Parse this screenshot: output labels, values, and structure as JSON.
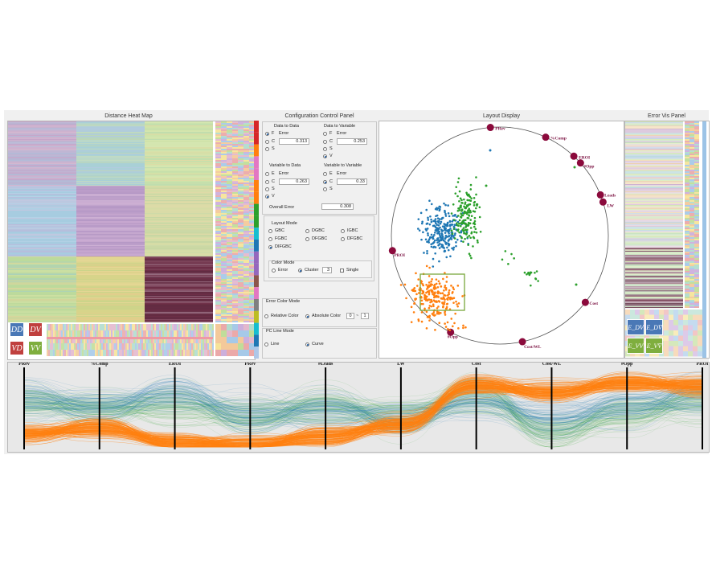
{
  "panels": {
    "heatmap_title": "Distance  Heat Map",
    "control_title": "Configuration Control Panel",
    "layout_title": "Layout Display",
    "error_title": "Error Vis Panel"
  },
  "heatmap": {
    "legend": [
      "DD",
      "DV",
      "VD",
      "VV"
    ],
    "legend_colors": [
      "#4a78b6",
      "#c0403e",
      "#c0403e",
      "#7fae3e"
    ]
  },
  "control": {
    "data_to_data": {
      "title": "Data to Data",
      "options": [
        "F",
        "C",
        "S"
      ],
      "selected": "F",
      "error_label": "Error",
      "value": "0.313"
    },
    "data_to_variable": {
      "title": "Data to Variable",
      "options": [
        "F",
        "C",
        "S",
        "V"
      ],
      "selected": "V",
      "error_label": "Error",
      "value": "0.253"
    },
    "variable_to_data": {
      "title": "Variable to Data",
      "options": [
        "E",
        "C",
        "S",
        "V"
      ],
      "selected": "V",
      "error_label": "Error",
      "value": "0.263"
    },
    "variable_to_variable": {
      "title": "Variable to Variable",
      "options": [
        "E",
        "C",
        "S"
      ],
      "selected": "C",
      "error_label": "Error",
      "value": "0.33"
    },
    "overall_error_label": "Overall Error",
    "overall_error_value": "0.308",
    "layout_mode": {
      "title": "Layout Mode",
      "options": [
        "GBC",
        "DGBC",
        "IGBC",
        "FGBC",
        "DFGBC",
        "DFGBC",
        "DIFGBC"
      ],
      "selected": "DIFGBC"
    },
    "color_mode": {
      "title": "Color Mode",
      "options": [
        "Error",
        "Cluster"
      ],
      "selected": "Cluster",
      "cluster_count": "3",
      "single_label": "Single"
    },
    "error_color_mode": {
      "title": "Error Color Mode",
      "options": [
        "Relative Color",
        "Absolute Color"
      ],
      "selected": "Absolute Color",
      "range_min": "0",
      "range_sep": "~",
      "range_max": "1"
    },
    "pc_line_mode": {
      "title": "PC Line Mode",
      "options": [
        "Line",
        "Curve"
      ],
      "selected": "Curve"
    }
  },
  "layout_display": {
    "anchors": [
      "PRev",
      "%Comp",
      "EROI",
      "#Opp",
      "Leads",
      "LW",
      "Cost",
      "Cost/WL",
      "#Opp",
      "PROI"
    ],
    "cluster_colors": [
      "#1f77b4",
      "#2ca02c",
      "#ff7f0e"
    ],
    "anchor_color": "#8b0a3c",
    "selection_color": "#7aa83c"
  },
  "error_vis": {
    "legend": [
      "E_DV",
      "E_DV̄",
      "E_VV",
      "E_VV̄"
    ],
    "legend_labels": [
      "EDV",
      "EDV",
      "EVV",
      "EVV"
    ],
    "legend_colors": [
      "#4a78b6",
      "#4a78b6",
      "#7fae3e",
      "#7fae3e"
    ]
  },
  "parallel_coords": {
    "axes": [
      "PRev",
      "%Comp",
      "EROI",
      "PRev",
      "#Leads",
      "LW",
      "Cost",
      "Cost/WL",
      "#Opp",
      "PROI"
    ]
  }
}
